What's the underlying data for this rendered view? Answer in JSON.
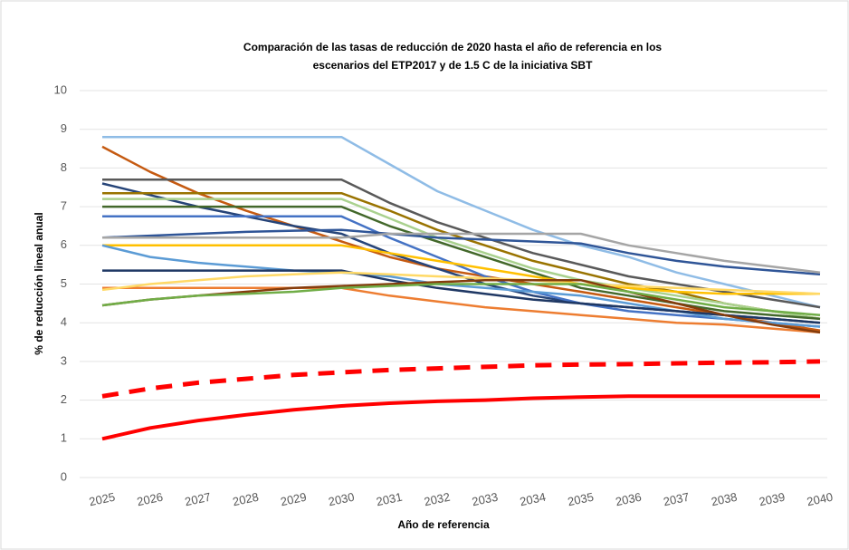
{
  "chart_data": {
    "type": "line",
    "title": [
      "Comparación  de las tasas de reducción de 2020 hasta el año de referencia en los",
      "escenarios del ETP2017 y de 1.5 C de la iniciativa  SBT"
    ],
    "x_label": "Año de referencia",
    "y_label": "% de reducción lineal anual",
    "categories": [
      "2025",
      "2026",
      "2027",
      "2028",
      "2029",
      "2030",
      "2031",
      "2032",
      "2033",
      "2034",
      "2035",
      "2036",
      "2037",
      "2038",
      "2039",
      "2040"
    ],
    "ylim": [
      0,
      10
    ],
    "yticks": [
      0,
      1,
      2,
      3,
      4,
      5,
      6,
      7,
      8,
      9,
      10
    ],
    "grid": true,
    "series": [
      {
        "color": "#8fbce6",
        "values": [
          8.8,
          8.8,
          8.8,
          8.8,
          8.8,
          8.8,
          8.1,
          7.4,
          6.9,
          6.4,
          6.0,
          5.7,
          5.3,
          5.0,
          4.7,
          4.4
        ]
      },
      {
        "color": "#c55a11",
        "values": [
          8.55,
          7.9,
          7.35,
          6.9,
          6.5,
          6.1,
          5.7,
          5.4,
          5.2,
          5.0,
          4.8,
          4.6,
          4.4,
          4.2,
          4.0,
          3.8
        ]
      },
      {
        "color": "#595959",
        "values": [
          7.7,
          7.7,
          7.7,
          7.7,
          7.7,
          7.7,
          7.1,
          6.6,
          6.2,
          5.8,
          5.5,
          5.2,
          5.0,
          4.8,
          4.6,
          4.4
        ]
      },
      {
        "color": "#264478",
        "values": [
          7.6,
          7.3,
          7.0,
          6.75,
          6.5,
          6.3,
          5.8,
          5.4,
          5.0,
          4.7,
          4.5,
          4.4,
          4.3,
          4.2,
          4.1,
          4.0
        ]
      },
      {
        "color": "#997300",
        "values": [
          7.35,
          7.35,
          7.35,
          7.35,
          7.35,
          7.35,
          6.9,
          6.4,
          6.0,
          5.6,
          5.3,
          5.0,
          4.8,
          4.5,
          4.3,
          4.1
        ]
      },
      {
        "color": "#a9d18e",
        "values": [
          7.2,
          7.2,
          7.2,
          7.2,
          7.2,
          7.2,
          6.7,
          6.2,
          5.8,
          5.4,
          5.1,
          4.9,
          4.7,
          4.5,
          4.3,
          4.1
        ]
      },
      {
        "color": "#43682b",
        "values": [
          7.0,
          7.0,
          7.0,
          7.0,
          7.0,
          7.0,
          6.5,
          6.1,
          5.7,
          5.3,
          4.9,
          4.7,
          4.5,
          4.3,
          4.2,
          4.1
        ]
      },
      {
        "color": "#4472c4",
        "values": [
          6.75,
          6.75,
          6.75,
          6.75,
          6.75,
          6.75,
          6.2,
          5.7,
          5.2,
          4.8,
          4.5,
          4.3,
          4.2,
          4.1,
          4.0,
          3.9
        ]
      },
      {
        "color": "#2f5597",
        "values": [
          6.2,
          6.25,
          6.3,
          6.35,
          6.38,
          6.4,
          6.3,
          6.2,
          6.15,
          6.1,
          6.05,
          5.8,
          5.6,
          5.45,
          5.35,
          5.25
        ]
      },
      {
        "color": "#a5a5a5",
        "values": [
          6.2,
          6.2,
          6.2,
          6.2,
          6.2,
          6.2,
          6.3,
          6.3,
          6.3,
          6.3,
          6.3,
          6.0,
          5.8,
          5.6,
          5.45,
          5.3
        ]
      },
      {
        "color": "#ffc000",
        "values": [
          6.0,
          6.0,
          6.0,
          6.0,
          6.0,
          6.0,
          5.8,
          5.6,
          5.4,
          5.2,
          5.0,
          4.9,
          4.8,
          4.75,
          4.75,
          4.75
        ]
      },
      {
        "color": "#5b9bd5",
        "values": [
          6.0,
          5.7,
          5.55,
          5.45,
          5.35,
          5.3,
          5.2,
          5.0,
          4.9,
          4.8,
          4.7,
          4.5,
          4.3,
          4.1,
          4.0,
          3.9
        ]
      },
      {
        "color": "#1f3864",
        "values": [
          5.35,
          5.35,
          5.35,
          5.35,
          5.35,
          5.35,
          5.1,
          4.9,
          4.75,
          4.6,
          4.5,
          4.4,
          4.3,
          4.2,
          4.1,
          4.0
        ]
      },
      {
        "color": "#ed7d31",
        "values": [
          4.9,
          4.9,
          4.9,
          4.9,
          4.9,
          4.9,
          4.7,
          4.55,
          4.4,
          4.3,
          4.2,
          4.1,
          4.0,
          3.95,
          3.85,
          3.75
        ]
      },
      {
        "color": "#ffd966",
        "values": [
          4.85,
          5.0,
          5.1,
          5.2,
          5.25,
          5.3,
          5.25,
          5.2,
          5.15,
          5.1,
          5.0,
          4.95,
          4.9,
          4.85,
          4.8,
          4.75
        ]
      },
      {
        "color": "#843c0c",
        "values": [
          4.45,
          4.6,
          4.7,
          4.8,
          4.9,
          4.95,
          5.0,
          5.05,
          5.1,
          5.1,
          5.1,
          4.8,
          4.5,
          4.2,
          3.95,
          3.75
        ]
      },
      {
        "color": "#70ad47",
        "values": [
          4.45,
          4.6,
          4.7,
          4.75,
          4.8,
          4.9,
          4.95,
          5.0,
          5.0,
          5.0,
          5.0,
          4.8,
          4.6,
          4.4,
          4.3,
          4.2
        ]
      },
      {
        "color": "#ff0000",
        "style": "dashed",
        "values": [
          2.1,
          2.3,
          2.45,
          2.55,
          2.65,
          2.72,
          2.78,
          2.82,
          2.86,
          2.9,
          2.92,
          2.93,
          2.95,
          2.97,
          2.98,
          3.0
        ]
      },
      {
        "color": "#ff0000",
        "style": "bold",
        "values": [
          1.0,
          1.28,
          1.47,
          1.62,
          1.75,
          1.85,
          1.92,
          1.97,
          2.0,
          2.05,
          2.08,
          2.1,
          2.1,
          2.1,
          2.1,
          2.1
        ]
      }
    ]
  }
}
